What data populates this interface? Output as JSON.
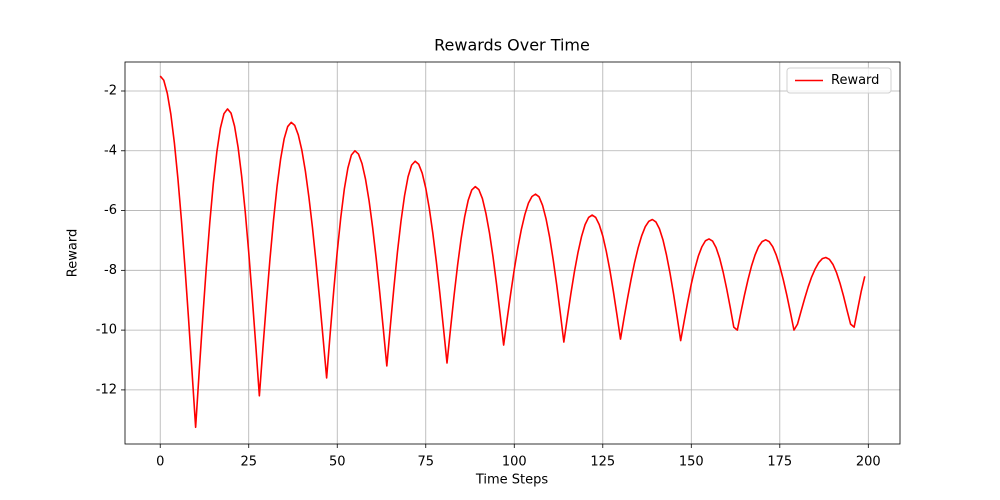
{
  "chart_data": {
    "type": "line",
    "title": "Rewards Over Time",
    "x_label": "Time Steps",
    "y_label": "Reward",
    "x": [
      0,
      1,
      2,
      3,
      4,
      5,
      6,
      7,
      8,
      9,
      10,
      11,
      12,
      13,
      14,
      15,
      16,
      17,
      18,
      19,
      20,
      21,
      22,
      23,
      24,
      25,
      26,
      27,
      28,
      29,
      30,
      31,
      32,
      33,
      34,
      35,
      36,
      37,
      38,
      39,
      40,
      41,
      42,
      43,
      44,
      45,
      46,
      47,
      48,
      49,
      50,
      51,
      52,
      53,
      54,
      55,
      56,
      57,
      58,
      59,
      60,
      61,
      62,
      63,
      64,
      65,
      66,
      67,
      68,
      69,
      70,
      71,
      72,
      73,
      74,
      75,
      76,
      77,
      78,
      79,
      80,
      81,
      82,
      83,
      84,
      85,
      86,
      87,
      88,
      89,
      90,
      91,
      92,
      93,
      94,
      95,
      96,
      97,
      98,
      99,
      100,
      101,
      102,
      103,
      104,
      105,
      106,
      107,
      108,
      109,
      110,
      111,
      112,
      113,
      114,
      115,
      116,
      117,
      118,
      119,
      120,
      121,
      122,
      123,
      124,
      125,
      126,
      127,
      128,
      129,
      130,
      131,
      132,
      133,
      134,
      135,
      136,
      137,
      138,
      139,
      140,
      141,
      142,
      143,
      144,
      145,
      146,
      147,
      148,
      149,
      150,
      151,
      152,
      153,
      154,
      155,
      156,
      157,
      158,
      159,
      160,
      161,
      162,
      163,
      164,
      165,
      166,
      167,
      168,
      169,
      170,
      171,
      172,
      173,
      174,
      175,
      176,
      177,
      178,
      179,
      180,
      181,
      182,
      183,
      184,
      185,
      186,
      187,
      188,
      189,
      190,
      191,
      192,
      193,
      194,
      195,
      196,
      197,
      198,
      199
    ],
    "series": [
      {
        "name": "Reward",
        "color": "#ff0000",
        "values": [
          -1.5,
          -1.64,
          -2.08,
          -2.78,
          -3.74,
          -4.94,
          -6.34,
          -7.92,
          -9.62,
          -11.42,
          -13.25,
          -11.4,
          -9.61,
          -7.92,
          -6.4,
          -5.09,
          -4.03,
          -3.24,
          -2.76,
          -2.6,
          -2.74,
          -3.18,
          -3.89,
          -4.85,
          -6.03,
          -7.4,
          -8.92,
          -10.53,
          -12.2,
          -10.61,
          -9.07,
          -7.62,
          -6.32,
          -5.19,
          -4.28,
          -3.6,
          -3.19,
          -3.05,
          -3.15,
          -3.47,
          -3.98,
          -4.68,
          -5.56,
          -6.57,
          -7.72,
          -8.96,
          -10.27,
          -11.6,
          -10.12,
          -8.69,
          -7.37,
          -6.23,
          -5.28,
          -4.58,
          -4.14,
          -4.0,
          -4.11,
          -4.43,
          -4.96,
          -5.68,
          -6.57,
          -7.6,
          -8.74,
          -9.95,
          -11.2,
          -9.86,
          -8.58,
          -7.39,
          -6.36,
          -5.51,
          -4.87,
          -4.48,
          -4.35,
          -4.45,
          -4.75,
          -5.25,
          -5.93,
          -6.76,
          -7.72,
          -8.79,
          -9.93,
          -11.1,
          -9.95,
          -8.84,
          -7.82,
          -6.93,
          -6.2,
          -5.65,
          -5.31,
          -5.2,
          -5.3,
          -5.6,
          -6.1,
          -6.75,
          -7.55,
          -8.47,
          -9.47,
          -10.5,
          -9.62,
          -8.77,
          -7.97,
          -7.25,
          -6.63,
          -6.13,
          -5.75,
          -5.53,
          -5.45,
          -5.54,
          -5.83,
          -6.29,
          -6.9,
          -7.65,
          -8.5,
          -9.43,
          -10.4,
          -9.57,
          -8.77,
          -8.04,
          -7.4,
          -6.87,
          -6.47,
          -6.23,
          -6.15,
          -6.23,
          -6.47,
          -6.85,
          -7.37,
          -7.99,
          -8.71,
          -9.49,
          -10.3,
          -9.6,
          -8.93,
          -8.3,
          -7.73,
          -7.24,
          -6.84,
          -6.54,
          -6.36,
          -6.3,
          -6.38,
          -6.61,
          -6.98,
          -7.49,
          -8.1,
          -8.8,
          -9.56,
          -10.35,
          -9.69,
          -9.05,
          -8.46,
          -7.95,
          -7.52,
          -7.21,
          -7.01,
          -6.95,
          -7.02,
          -7.24,
          -7.59,
          -8.06,
          -8.62,
          -9.24,
          -9.9,
          -10.0,
          -9.41,
          -8.84,
          -8.32,
          -7.86,
          -7.49,
          -7.21,
          -7.04,
          -6.98,
          -7.04,
          -7.21,
          -7.49,
          -7.86,
          -8.32,
          -8.84,
          -9.41,
          -10.0,
          -9.8,
          -9.37,
          -8.95,
          -8.56,
          -8.22,
          -7.95,
          -7.74,
          -7.61,
          -7.57,
          -7.63,
          -7.8,
          -8.07,
          -8.43,
          -8.86,
          -9.34,
          -9.8,
          -9.9,
          -9.3,
          -8.7,
          -8.2
        ]
      }
    ],
    "xlim": [
      -9.95,
      208.95
    ],
    "xticks": [
      0,
      25,
      50,
      75,
      100,
      125,
      150,
      175,
      200
    ],
    "ylim": [
      -13.81,
      -1.03
    ],
    "yticks": [
      -12,
      -10,
      -8,
      -6,
      -4,
      -2
    ],
    "grid": true,
    "legend": "upper right"
  }
}
